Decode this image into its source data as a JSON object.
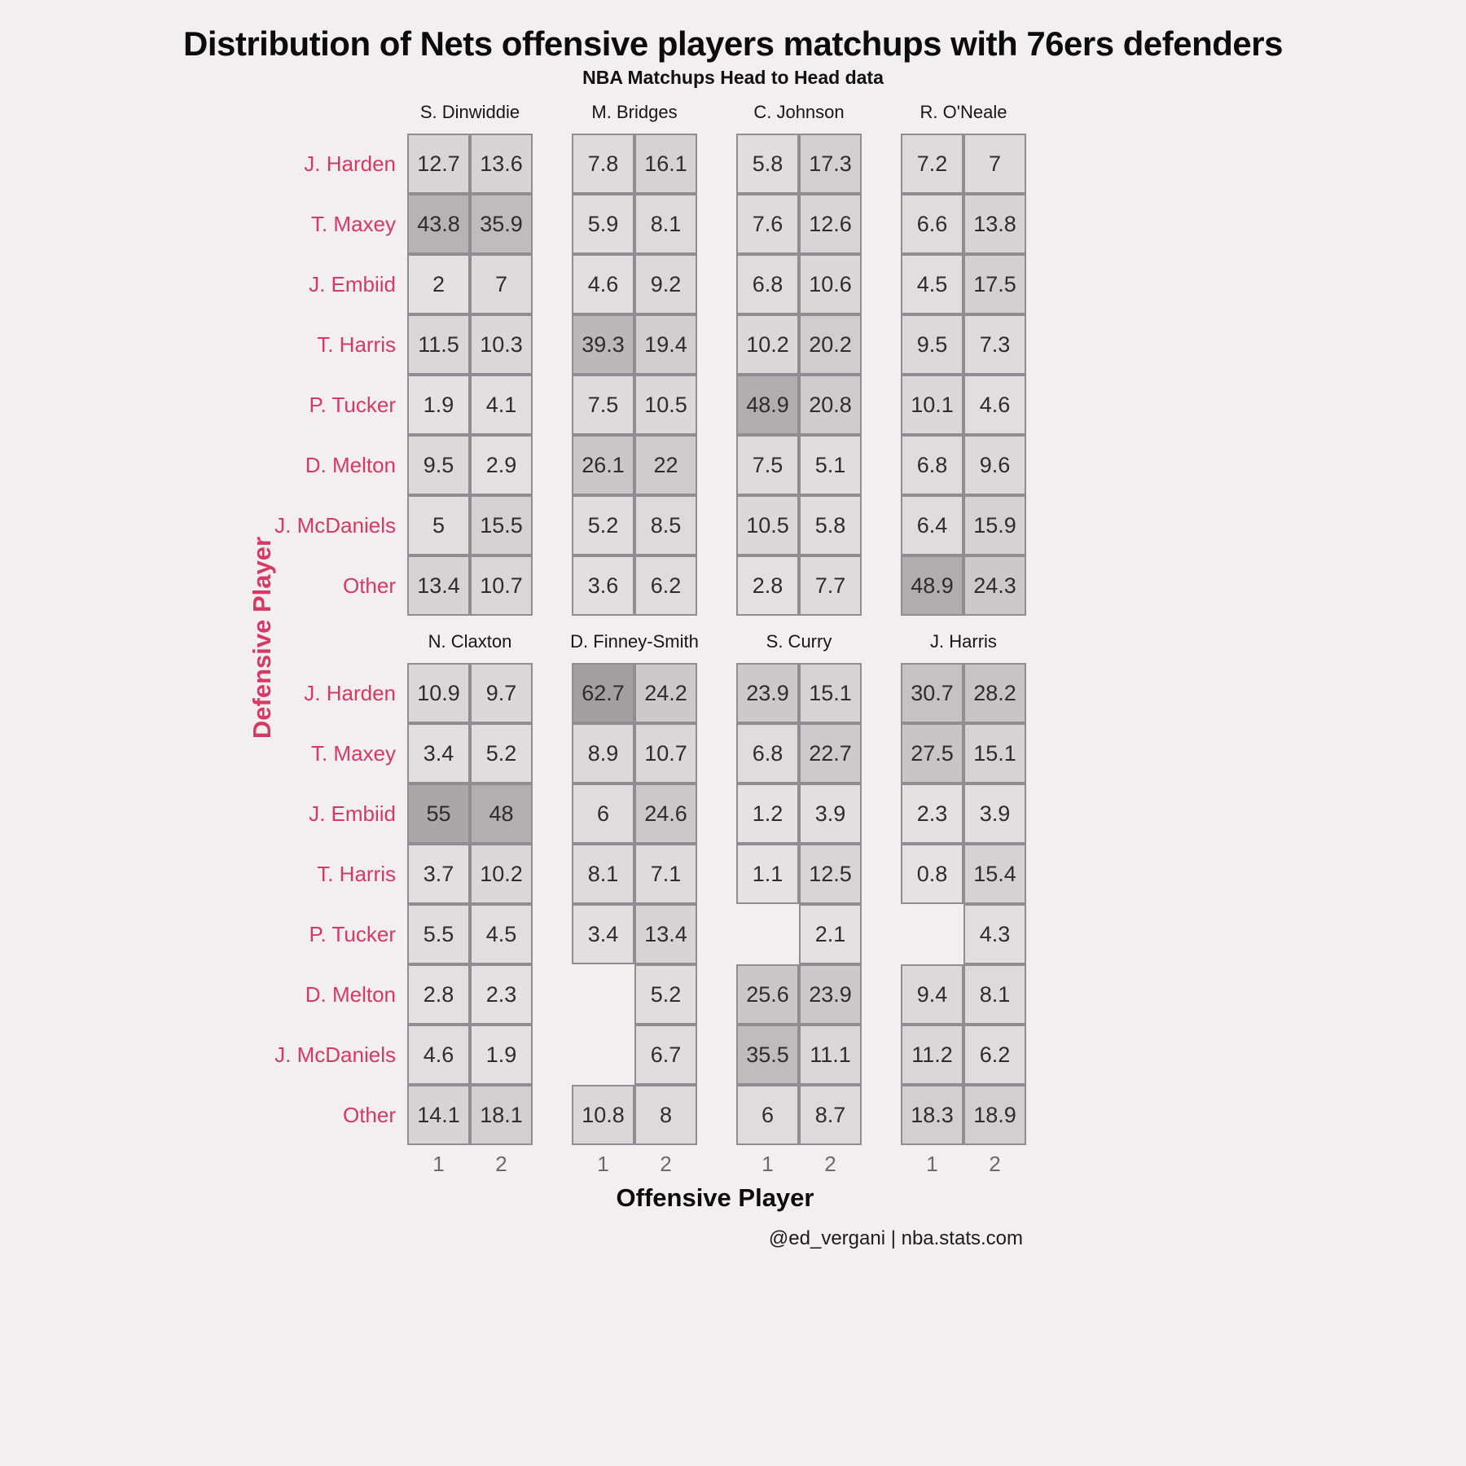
{
  "title": "Distribution of Nets offensive players matchups with 76ers defenders",
  "subtitle": "NBA Matchups Head to Head data",
  "caption": "@ed_vergani | nba.stats.com",
  "chart_data": {
    "type": "heatmap",
    "title": "Distribution of Nets offensive players matchups with 76ers defenders",
    "subtitle": "NBA Matchups Head to Head data",
    "xlabel": "Offensive Player",
    "ylabel": "Defensive Player",
    "x_ticks": [
      "1",
      "2"
    ],
    "defenders": [
      "J. Harden",
      "T. Maxey",
      "J. Embiid",
      "T. Harris",
      "P. Tucker",
      "D. Melton",
      "J. McDaniels",
      "Other"
    ],
    "value_range": [
      0,
      62.7
    ],
    "colors": {
      "background": "#f3eeef",
      "label_red": "#d63a64",
      "cell_border": "#8f8d8f",
      "cell_low": "#e5e3e4",
      "cell_high": "#a19fa0"
    },
    "facet_rows": [
      [
        {
          "name": "S. Dinwiddie",
          "values": [
            [
              12.7,
              13.6
            ],
            [
              43.8,
              35.9
            ],
            [
              2,
              7
            ],
            [
              11.5,
              10.3
            ],
            [
              1.9,
              4.1
            ],
            [
              9.5,
              2.9
            ],
            [
              5,
              15.5
            ],
            [
              13.4,
              10.7
            ]
          ]
        },
        {
          "name": "M. Bridges",
          "values": [
            [
              7.8,
              16.1
            ],
            [
              5.9,
              8.1
            ],
            [
              4.6,
              9.2
            ],
            [
              39.3,
              19.4
            ],
            [
              7.5,
              10.5
            ],
            [
              26.1,
              22
            ],
            [
              5.2,
              8.5
            ],
            [
              3.6,
              6.2
            ]
          ]
        },
        {
          "name": "C. Johnson",
          "values": [
            [
              5.8,
              17.3
            ],
            [
              7.6,
              12.6
            ],
            [
              6.8,
              10.6
            ],
            [
              10.2,
              20.2
            ],
            [
              48.9,
              20.8
            ],
            [
              7.5,
              5.1
            ],
            [
              10.5,
              5.8
            ],
            [
              2.8,
              7.7
            ]
          ]
        },
        {
          "name": "R. O'Neale",
          "values": [
            [
              7.2,
              7
            ],
            [
              6.6,
              13.8
            ],
            [
              4.5,
              17.5
            ],
            [
              9.5,
              7.3
            ],
            [
              10.1,
              4.6
            ],
            [
              6.8,
              9.6
            ],
            [
              6.4,
              15.9
            ],
            [
              48.9,
              24.3
            ]
          ]
        }
      ],
      [
        {
          "name": "N. Claxton",
          "values": [
            [
              10.9,
              9.7
            ],
            [
              3.4,
              5.2
            ],
            [
              55,
              48
            ],
            [
              3.7,
              10.2
            ],
            [
              5.5,
              4.5
            ],
            [
              2.8,
              2.3
            ],
            [
              4.6,
              1.9
            ],
            [
              14.1,
              18.1
            ]
          ]
        },
        {
          "name": "D. Finney-Smith",
          "values": [
            [
              62.7,
              24.2
            ],
            [
              8.9,
              10.7
            ],
            [
              6,
              24.6
            ],
            [
              8.1,
              7.1
            ],
            [
              3.4,
              13.4
            ],
            [
              null,
              5.2
            ],
            [
              null,
              6.7
            ],
            [
              10.8,
              8
            ]
          ]
        },
        {
          "name": "S. Curry",
          "values": [
            [
              23.9,
              15.1
            ],
            [
              6.8,
              22.7
            ],
            [
              1.2,
              3.9
            ],
            [
              1.1,
              12.5
            ],
            [
              null,
              2.1
            ],
            [
              25.6,
              23.9
            ],
            [
              35.5,
              11.1
            ],
            [
              6,
              8.7
            ]
          ]
        },
        {
          "name": "J. Harris",
          "values": [
            [
              30.7,
              28.2
            ],
            [
              27.5,
              15.1
            ],
            [
              2.3,
              3.9
            ],
            [
              0.8,
              15.4
            ],
            [
              null,
              4.3
            ],
            [
              9.4,
              8.1
            ],
            [
              11.2,
              6.2
            ],
            [
              18.3,
              18.9
            ]
          ]
        }
      ]
    ]
  }
}
